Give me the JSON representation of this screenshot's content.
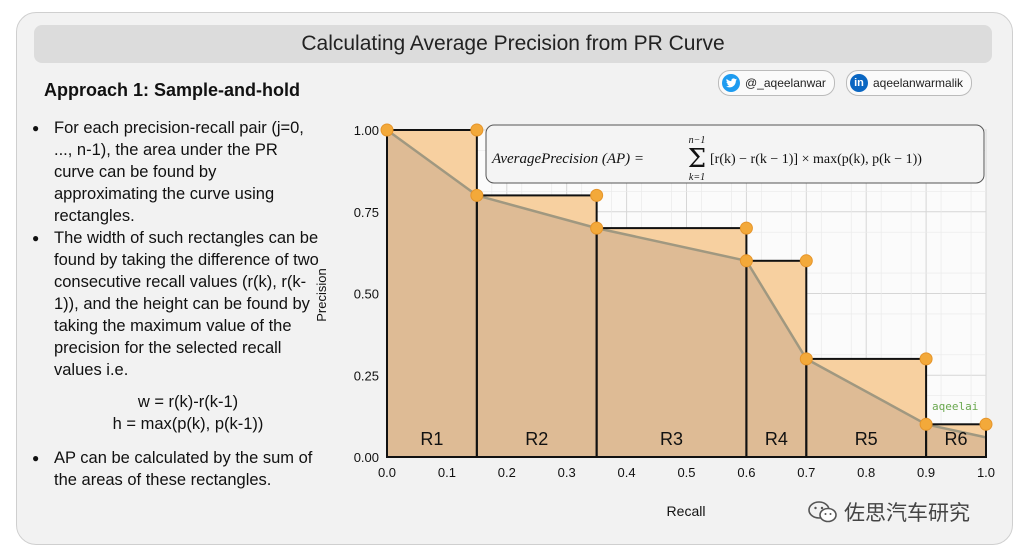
{
  "title": "Calculating Average Precision from PR Curve",
  "approach_heading": "Approach 1: Sample-and-hold",
  "social": {
    "twitter_icon": "twitter-icon",
    "twitter_handle": "@_aqeelanwar",
    "linkedin_icon": "linkedin-icon",
    "linkedin_handle": "aqeelanwarmalik"
  },
  "bullets": {
    "b1": "For each precision-recall pair (j=0, ..., n-1), the area under the PR curve can be found by approximating the curve using rectangles.",
    "b2": "The width of such rectangles can be found by taking the difference of two consecutive recall values (r(k), r(k-1)), and the height can be found by taking the maximum value of the precision for the selected recall values i.e.",
    "formula_w": "w = r(k)-r(k-1)",
    "formula_h": "h = max(p(k), p(k-1))",
    "b3": "AP can be calculated by the sum of the areas of these rectangles."
  },
  "formula_box": {
    "lhs": "AveragePrecision (AP) =",
    "sum_top": "n−1",
    "sum_bottom": "k=1",
    "sigma": "Σ",
    "rhs": "[r(k) − r(k − 1)] × max(p(k), p(k − 1))"
  },
  "chart_data": {
    "type": "area",
    "title": "",
    "xlabel": "Recall",
    "ylabel": "Precision",
    "xlim": [
      0.0,
      1.0
    ],
    "ylim": [
      0.0,
      1.0
    ],
    "grid": true,
    "x_ticks": [
      "0.0",
      "0.1",
      "0.2",
      "0.3",
      "0.4",
      "0.5",
      "0.6",
      "0.7",
      "0.8",
      "0.9",
      "1.0"
    ],
    "y_ticks": [
      "0.00",
      "0.25",
      "0.50",
      "0.75",
      "1.00"
    ],
    "pr_curve": {
      "recall": [
        0.0,
        0.15,
        0.35,
        0.6,
        0.7,
        0.9,
        1.0
      ],
      "precision": [
        1.0,
        0.8,
        0.7,
        0.6,
        0.3,
        0.1,
        0.06
      ]
    },
    "rectangles": [
      {
        "label": "R1",
        "x0": 0.0,
        "x1": 0.15,
        "height": 1.0
      },
      {
        "label": "R2",
        "x0": 0.15,
        "x1": 0.35,
        "height": 0.8
      },
      {
        "label": "R3",
        "x0": 0.35,
        "x1": 0.6,
        "height": 0.7
      },
      {
        "label": "R4",
        "x0": 0.6,
        "x1": 0.7,
        "height": 0.6
      },
      {
        "label": "R5",
        "x0": 0.7,
        "x1": 0.9,
        "height": 0.3
      },
      {
        "label": "R6",
        "x0": 0.9,
        "x1": 1.0,
        "height": 0.1
      }
    ],
    "corner_points": [
      [
        0.0,
        1.0
      ],
      [
        0.15,
        1.0
      ],
      [
        0.15,
        0.8
      ],
      [
        0.35,
        0.8
      ],
      [
        0.35,
        0.7
      ],
      [
        0.6,
        0.7
      ],
      [
        0.6,
        0.6
      ],
      [
        0.7,
        0.6
      ],
      [
        0.7,
        0.3
      ],
      [
        0.9,
        0.3
      ],
      [
        0.9,
        0.1
      ],
      [
        1.0,
        0.1
      ]
    ],
    "colors": {
      "rect_fill": "#f7d0a0",
      "under_curve_fill": "#d9b793",
      "curve": "#a09880",
      "marker": "#f3a93a",
      "grid": "#d6d6d6"
    },
    "logo_text": "aqeelai"
  },
  "watermark": {
    "icon": "wechat-icon",
    "text": "佐思汽车研究"
  }
}
